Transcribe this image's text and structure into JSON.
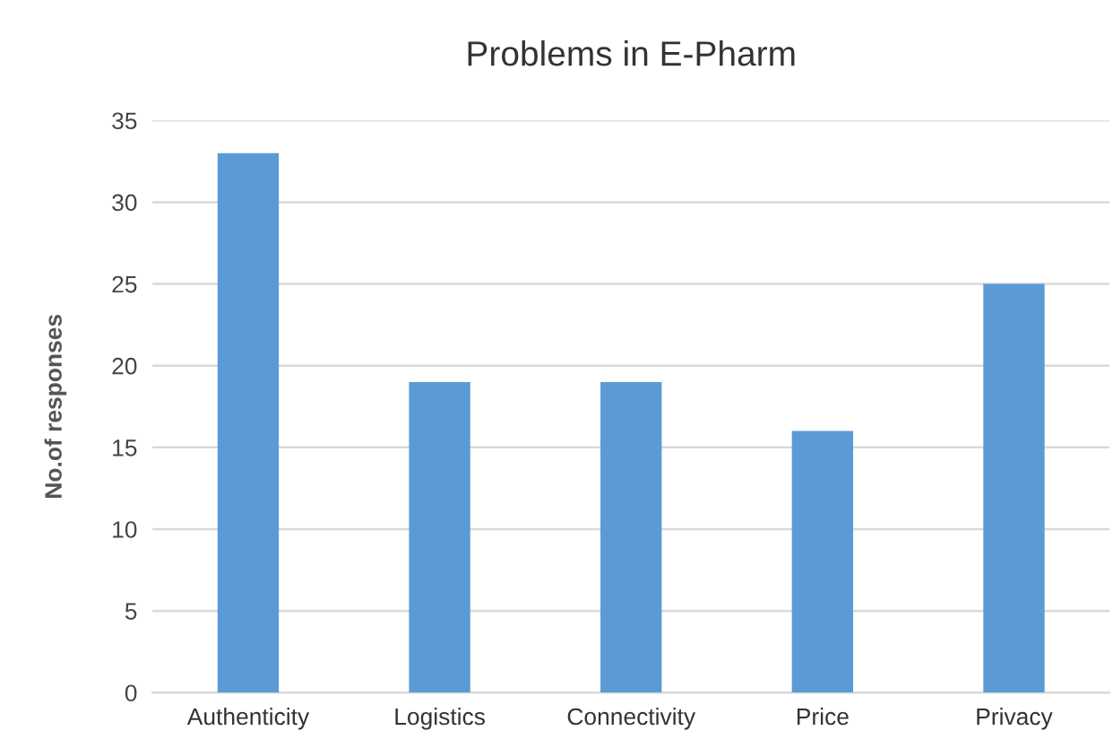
{
  "chart_data": {
    "type": "bar",
    "title": "Problems in E-Pharm",
    "ylabel": "No.of responses",
    "categories": [
      "Authenticity",
      "Logistics",
      "Connectivity",
      "Price",
      "Privacy"
    ],
    "values": [
      33,
      19,
      19,
      16,
      25
    ],
    "color": "#5b9bd5",
    "ylim": [
      0,
      35
    ],
    "yticks": [
      0,
      5,
      10,
      15,
      20,
      25,
      30,
      35
    ],
    "grid": "y",
    "legend": false
  }
}
